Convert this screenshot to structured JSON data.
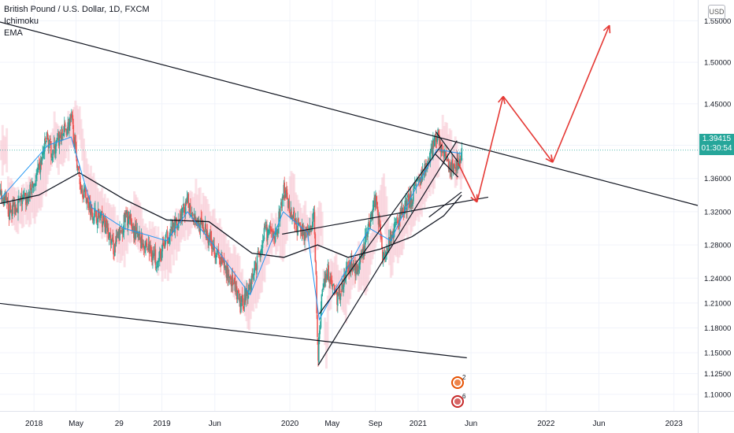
{
  "legend": {
    "symbol": "British Pound / U.S. Dollar, 1D, FXCM",
    "indicator1": "Ichimoku",
    "indicator2": "EMA"
  },
  "currency_button": "USD",
  "current_price": {
    "value": "1.39415",
    "countdown": "01:30:54"
  },
  "colors": {
    "up_candle": "#26a69a",
    "down_candle": "#ef5350",
    "trendline": "#131722",
    "arrow": "#e53935",
    "ema": "#131722",
    "conversion": "#2196f3",
    "cloud": "#f8c8d4",
    "badge": "#26a69a"
  },
  "event_badges": [
    {
      "country": "UK",
      "count": "2"
    },
    {
      "country": "US",
      "count": "6"
    }
  ],
  "chart_data": {
    "type": "candlestick",
    "ylim": [
      1.08,
      1.575
    ],
    "xlim": [
      "2017-09-26",
      "2023-03-10"
    ],
    "x_tick_labels": [
      "2018",
      "May",
      "29",
      "2019",
      "Jun",
      "2020",
      "May",
      "Sep",
      "2021",
      "Jun",
      "2022",
      "Jun",
      "2023"
    ],
    "x_tick_dates": [
      "2018-01-01",
      "2018-05-01",
      "2018-09-01",
      "2019-01-01",
      "2019-06-01",
      "2020-01-01",
      "2020-05-01",
      "2020-09-01",
      "2021-01-01",
      "2021-06-01",
      "2022-01-01",
      "2022-06-01",
      "2023-01-01"
    ],
    "y_tick_labels": [
      "1.55000",
      "1.50000",
      "1.45000",
      "1.40000",
      "1.36000",
      "1.32000",
      "1.28000",
      "1.24000",
      "1.21000",
      "1.18000",
      "1.15000",
      "1.12500",
      "1.10000"
    ],
    "y_tick_values": [
      1.55,
      1.5,
      1.45,
      1.4,
      1.36,
      1.32,
      1.28,
      1.24,
      1.21,
      1.18,
      1.15,
      1.125,
      1.1
    ],
    "price_path": [
      [
        "2017-09-26",
        1.34
      ],
      [
        "2017-10-20",
        1.32
      ],
      [
        "2017-11-15",
        1.33
      ],
      [
        "2017-12-10",
        1.335
      ],
      [
        "2018-01-15",
        1.37
      ],
      [
        "2018-02-05",
        1.41
      ],
      [
        "2018-02-20",
        1.39
      ],
      [
        "2018-03-15",
        1.41
      ],
      [
        "2018-04-17",
        1.43
      ],
      [
        "2018-05-10",
        1.355
      ],
      [
        "2018-06-15",
        1.32
      ],
      [
        "2018-07-15",
        1.31
      ],
      [
        "2018-08-15",
        1.275
      ],
      [
        "2018-09-20",
        1.315
      ],
      [
        "2018-10-20",
        1.29
      ],
      [
        "2018-11-15",
        1.28
      ],
      [
        "2018-12-20",
        1.26
      ],
      [
        "2019-01-15",
        1.29
      ],
      [
        "2019-02-15",
        1.31
      ],
      [
        "2019-03-15",
        1.33
      ],
      [
        "2019-04-15",
        1.305
      ],
      [
        "2019-05-15",
        1.29
      ],
      [
        "2019-06-15",
        1.26
      ],
      [
        "2019-07-15",
        1.24
      ],
      [
        "2019-08-12",
        1.205
      ],
      [
        "2019-09-10",
        1.235
      ],
      [
        "2019-10-20",
        1.295
      ],
      [
        "2019-11-20",
        1.29
      ],
      [
        "2019-12-13",
        1.345
      ],
      [
        "2020-01-15",
        1.305
      ],
      [
        "2020-02-20",
        1.29
      ],
      [
        "2020-03-09",
        1.315
      ],
      [
        "2020-03-20",
        1.145
      ],
      [
        "2020-04-01",
        1.23
      ],
      [
        "2020-04-15",
        1.25
      ],
      [
        "2020-05-15",
        1.215
      ],
      [
        "2020-06-15",
        1.255
      ],
      [
        "2020-07-15",
        1.25
      ],
      [
        "2020-08-15",
        1.31
      ],
      [
        "2020-09-01",
        1.34
      ],
      [
        "2020-09-20",
        1.27
      ],
      [
        "2020-10-15",
        1.29
      ],
      [
        "2020-11-15",
        1.32
      ],
      [
        "2020-12-15",
        1.34
      ],
      [
        "2021-01-15",
        1.365
      ],
      [
        "2021-02-24",
        1.415
      ],
      [
        "2021-03-15",
        1.385
      ],
      [
        "2021-04-12",
        1.37
      ],
      [
        "2021-05-05",
        1.394
      ]
    ],
    "ema_path": [
      [
        "2017-09-26",
        1.33
      ],
      [
        "2018-01-15",
        1.34
      ],
      [
        "2018-05-10",
        1.367
      ],
      [
        "2018-09-15",
        1.335
      ],
      [
        "2019-01-15",
        1.31
      ],
      [
        "2019-05-15",
        1.308
      ],
      [
        "2019-09-15",
        1.27
      ],
      [
        "2019-12-15",
        1.265
      ],
      [
        "2020-03-20",
        1.28
      ],
      [
        "2020-06-15",
        1.265
      ],
      [
        "2020-09-15",
        1.275
      ],
      [
        "2020-12-15",
        1.29
      ],
      [
        "2021-03-15",
        1.315
      ],
      [
        "2021-05-05",
        1.34
      ]
    ],
    "conversion_path": [
      [
        "2017-09-26",
        1.335
      ],
      [
        "2018-02-10",
        1.4
      ],
      [
        "2018-04-17",
        1.41
      ],
      [
        "2018-06-15",
        1.325
      ],
      [
        "2018-09-15",
        1.3
      ],
      [
        "2019-01-15",
        1.285
      ],
      [
        "2019-03-15",
        1.32
      ],
      [
        "2019-06-15",
        1.27
      ],
      [
        "2019-09-10",
        1.22
      ],
      [
        "2019-12-13",
        1.32
      ],
      [
        "2020-02-20",
        1.295
      ],
      [
        "2020-03-25",
        1.19
      ],
      [
        "2020-05-15",
        1.23
      ],
      [
        "2020-08-15",
        1.3
      ],
      [
        "2020-10-15",
        1.285
      ],
      [
        "2020-12-15",
        1.34
      ],
      [
        "2021-02-24",
        1.395
      ],
      [
        "2021-05-05",
        1.39
      ]
    ],
    "trendlines": [
      {
        "name": "descending-resistance",
        "points": [
          [
            "2017-09-26",
            1.5485
          ],
          [
            "2023-03-10",
            1.3275
          ]
        ]
      },
      {
        "name": "lower-channel",
        "points": [
          [
            "2017-09-26",
            1.2095
          ],
          [
            "2021-05-20",
            1.144
          ]
        ]
      },
      {
        "name": "rising-wedge-support",
        "points": [
          [
            "2020-03-22",
            1.135
          ],
          [
            "2021-04-22",
            1.4055
          ]
        ]
      },
      {
        "name": "rising-wedge-top",
        "points": [
          [
            "2020-03-25",
            1.197
          ],
          [
            "2021-03-10",
            1.4007
          ]
        ]
      },
      {
        "name": "horizontal-support",
        "points": [
          [
            "2019-12-10",
            1.293
          ],
          [
            "2021-07-20",
            1.3375
          ]
        ]
      },
      {
        "name": "ema-extension",
        "points": [
          [
            "2021-02-01",
            1.3135
          ],
          [
            "2021-05-05",
            1.3437
          ]
        ]
      },
      {
        "name": "flag-top",
        "points": [
          [
            "2021-02-20",
            1.4165
          ],
          [
            "2021-04-25",
            1.38
          ]
        ]
      },
      {
        "name": "flag-bottom",
        "points": [
          [
            "2021-02-20",
            1.389
          ],
          [
            "2021-04-25",
            1.3617
          ]
        ]
      }
    ],
    "projection_path": [
      [
        "2021-04-25",
        1.3787
      ],
      [
        "2021-06-18",
        1.3315
      ],
      [
        "2021-09-01",
        1.459
      ],
      [
        "2022-01-20",
        1.3795
      ],
      [
        "2022-07-01",
        1.5445
      ]
    ]
  }
}
